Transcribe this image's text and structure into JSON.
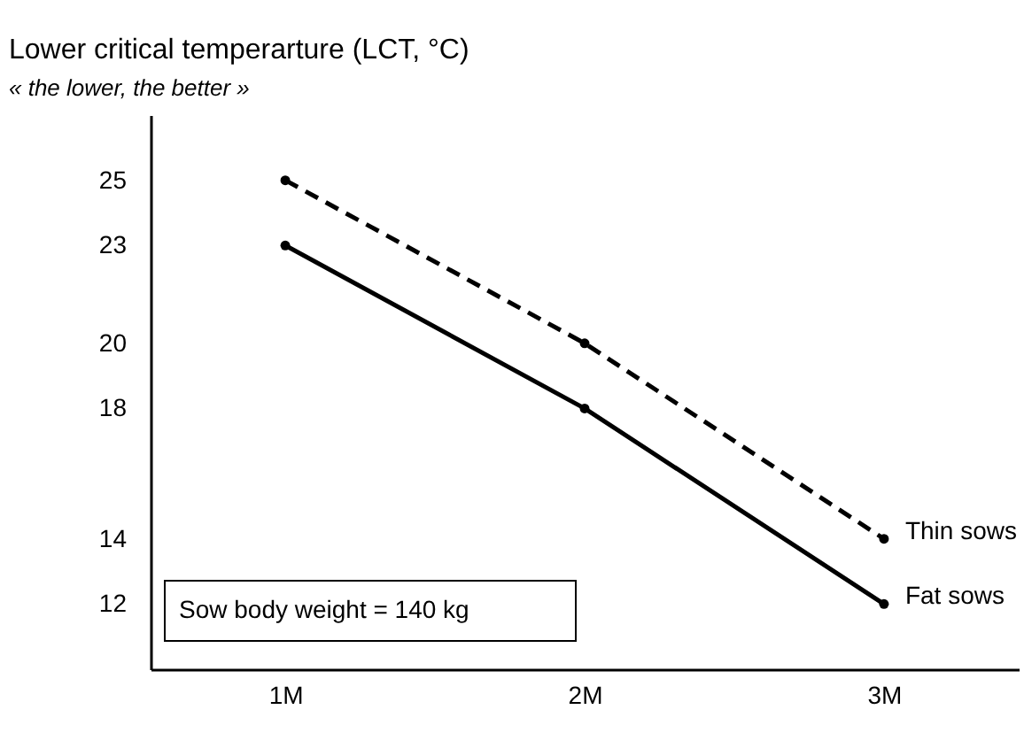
{
  "chart_data": {
    "type": "line",
    "title": "Lower critical temperarture (LCT, °C)",
    "subtitle": "« the lower, the better »",
    "categories": [
      "1M",
      "2M",
      "3M"
    ],
    "series": [
      {
        "name": "Thin sows",
        "color": "#000000",
        "line_style": "dashed",
        "values": [
          25,
          20,
          14
        ]
      },
      {
        "name": "Fat sows",
        "color": "#000000",
        "line_style": "solid",
        "values": [
          23,
          18,
          12
        ]
      }
    ],
    "ylim": [
      10,
      27
    ],
    "yticks": [
      12,
      14,
      18,
      20,
      23,
      25
    ],
    "grid": false,
    "legend": false,
    "marker": "circle",
    "annotations": [
      "Sow body weight = 140 kg"
    ]
  }
}
